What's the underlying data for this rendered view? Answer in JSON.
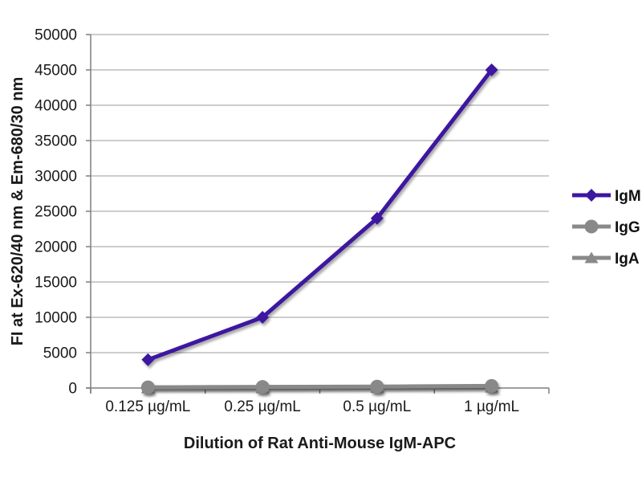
{
  "chart_data": {
    "type": "line",
    "title": "",
    "categories": [
      "0.125 µg/mL",
      "0.25 µg/mL",
      "0.5 µg/mL",
      "1 µg/mL"
    ],
    "series": [
      {
        "name": "IgM",
        "values": [
          4000,
          10000,
          24000,
          45000
        ],
        "color": "#3d17a0",
        "marker": "diamond"
      },
      {
        "name": "IgG",
        "values": [
          100,
          150,
          200,
          300
        ],
        "color": "#898989",
        "marker": "circle"
      },
      {
        "name": "IgA",
        "values": [
          0,
          0,
          50,
          100
        ],
        "color": "#898989",
        "marker": "triangle"
      }
    ],
    "xlabel": "Dilution of Rat Anti-Mouse IgM-APC",
    "ylabel": "FI at Ex-620/40 nm & Em-680/30 nm",
    "ylim": [
      0,
      50000
    ],
    "ytick_step": 5000,
    "ytick_labels": [
      "0",
      "5000",
      "10000",
      "15000",
      "20000",
      "25000",
      "30000",
      "35000",
      "40000",
      "45000",
      "50000"
    ],
    "grid": true,
    "legend_position": "right",
    "style": {
      "grid_color": "#9b9b9b",
      "axis_color": "#7f7f7f",
      "text_color": "#1a1a1a",
      "background": "#ffffff"
    }
  }
}
